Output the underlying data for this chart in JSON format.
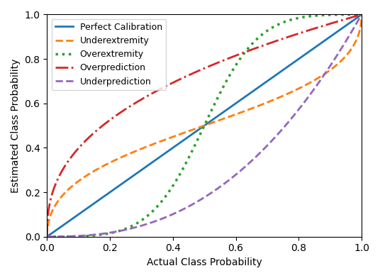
{
  "xlabel": "Actual Class Probability",
  "ylabel": "Estimated Class Probability",
  "xlim": [
    0.0,
    1.0
  ],
  "ylim": [
    0.0,
    1.0
  ],
  "lines": [
    {
      "label": "Perfect Calibration",
      "color": "#1f77b4",
      "linestyle": "-",
      "linewidth": 2.0,
      "type": "identity"
    },
    {
      "label": "Underextremity",
      "color": "#ff7f0e",
      "linestyle": "--",
      "linewidth": 2.0,
      "type": "underextremity",
      "logit_scale": 0.5
    },
    {
      "label": "Overextremity",
      "color": "#2ca02c",
      "linestyle": ":",
      "linewidth": 2.5,
      "type": "overextremity",
      "logit_scale": 3.0
    },
    {
      "label": "Overprediction",
      "color": "#d62728",
      "linestyle": "-.",
      "linewidth": 2.0,
      "type": "power",
      "exponent": 0.4
    },
    {
      "label": "Underprediction",
      "color": "#9467bd",
      "linestyle": "--",
      "linewidth": 2.0,
      "type": "power",
      "exponent": 2.5
    }
  ],
  "legend_loc": "upper left",
  "legend_fontsize": 9,
  "figsize": [
    5.36,
    3.92
  ],
  "dpi": 100
}
